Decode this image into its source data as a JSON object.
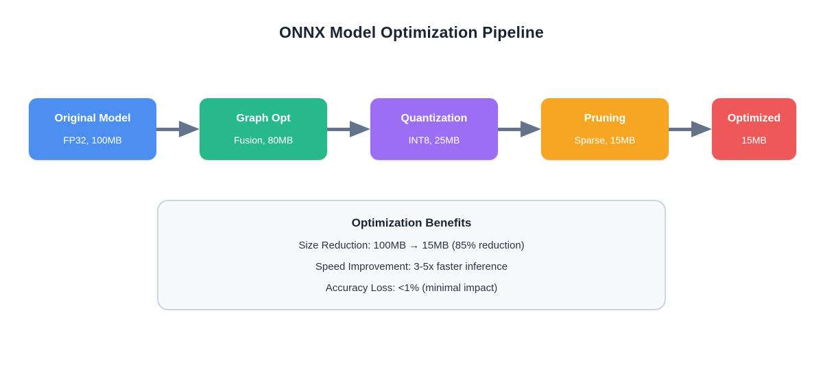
{
  "title": "ONNX Model Optimization Pipeline",
  "pipeline": {
    "stages": [
      {
        "label": "Original Model",
        "detail": "FP32, 100MB",
        "color": "#4d8ff0"
      },
      {
        "label": "Graph Opt",
        "detail": "Fusion, 80MB",
        "color": "#27b98a"
      },
      {
        "label": "Quantization",
        "detail": "INT8, 25MB",
        "color": "#9b6ef3"
      },
      {
        "label": "Pruning",
        "detail": "Sparse, 15MB",
        "color": "#f6a623"
      },
      {
        "label": "Optimized",
        "detail": "15MB",
        "color": "#ef5858"
      }
    ],
    "arrow_color": "#64748b"
  },
  "benefits": {
    "title": "Optimization Benefits",
    "items": [
      "Size Reduction: 100MB → 15MB (85% reduction)",
      "Speed Improvement: 3-5x faster inference",
      "Accuracy Loss: <1% (minimal impact)"
    ]
  },
  "colors": {
    "title_text": "#1a2533",
    "body_text": "#2b3543",
    "panel_background": "#f8f9fb",
    "panel_border": "#ced3dc"
  }
}
